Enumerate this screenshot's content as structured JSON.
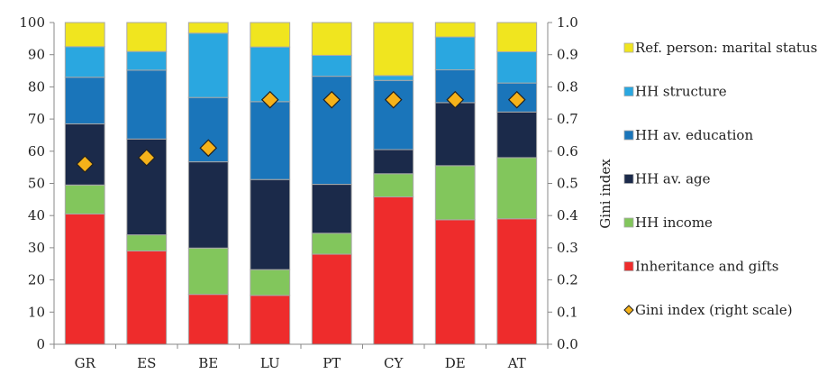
{
  "chart_data": {
    "type": "bar",
    "stacked": true,
    "categories": [
      "GR",
      "ES",
      "BE",
      "LU",
      "PT",
      "CY",
      "DE",
      "AT"
    ],
    "ylim": [
      0,
      100
    ],
    "y_ticks": [
      "0",
      "10",
      "20",
      "30",
      "40",
      "50",
      "60",
      "70",
      "80",
      "90",
      "100"
    ],
    "y2label": "Gini index",
    "y2lim": [
      0,
      1
    ],
    "y2_ticks": [
      "0.0",
      "0.1",
      "0.2",
      "0.3",
      "0.4",
      "0.5",
      "0.6",
      "0.7",
      "0.8",
      "0.9",
      "1.0"
    ],
    "grid": false,
    "legend_position": "right",
    "series": [
      {
        "name": "Inheritance and gifts",
        "color": "#ee2c2c",
        "values": [
          40.5,
          29,
          15.5,
          15.2,
          28,
          45.8,
          38.7,
          39
        ]
      },
      {
        "name": "HH income",
        "color": "#82c65c",
        "values": [
          9,
          5,
          14.4,
          8,
          6.5,
          7.2,
          16.8,
          19
        ]
      },
      {
        "name": "HH av. age",
        "color": "#1b2a4a",
        "values": [
          19,
          29.8,
          26.8,
          28,
          15.2,
          7.5,
          19.6,
          14.2
        ]
      },
      {
        "name": "HH av. education",
        "color": "#1a75ba",
        "values": [
          14.5,
          21.4,
          20,
          24.2,
          33.6,
          21.5,
          10.2,
          9
        ]
      },
      {
        "name": "HH structure",
        "color": "#2aa7e0",
        "values": [
          9.5,
          5.8,
          20,
          17,
          6.5,
          1.5,
          10.2,
          9.7
        ]
      },
      {
        "name": "Ref. person: marital status",
        "color": "#f0e51f",
        "values": [
          7.5,
          9,
          3.3,
          7.6,
          10.2,
          16.5,
          4.5,
          9.1
        ]
      }
    ],
    "gini": {
      "name": "Gini index (right scale)",
      "color": "#f5b21a",
      "values": [
        0.56,
        0.58,
        0.61,
        0.76,
        0.76,
        0.76,
        0.76,
        0.76
      ]
    }
  }
}
